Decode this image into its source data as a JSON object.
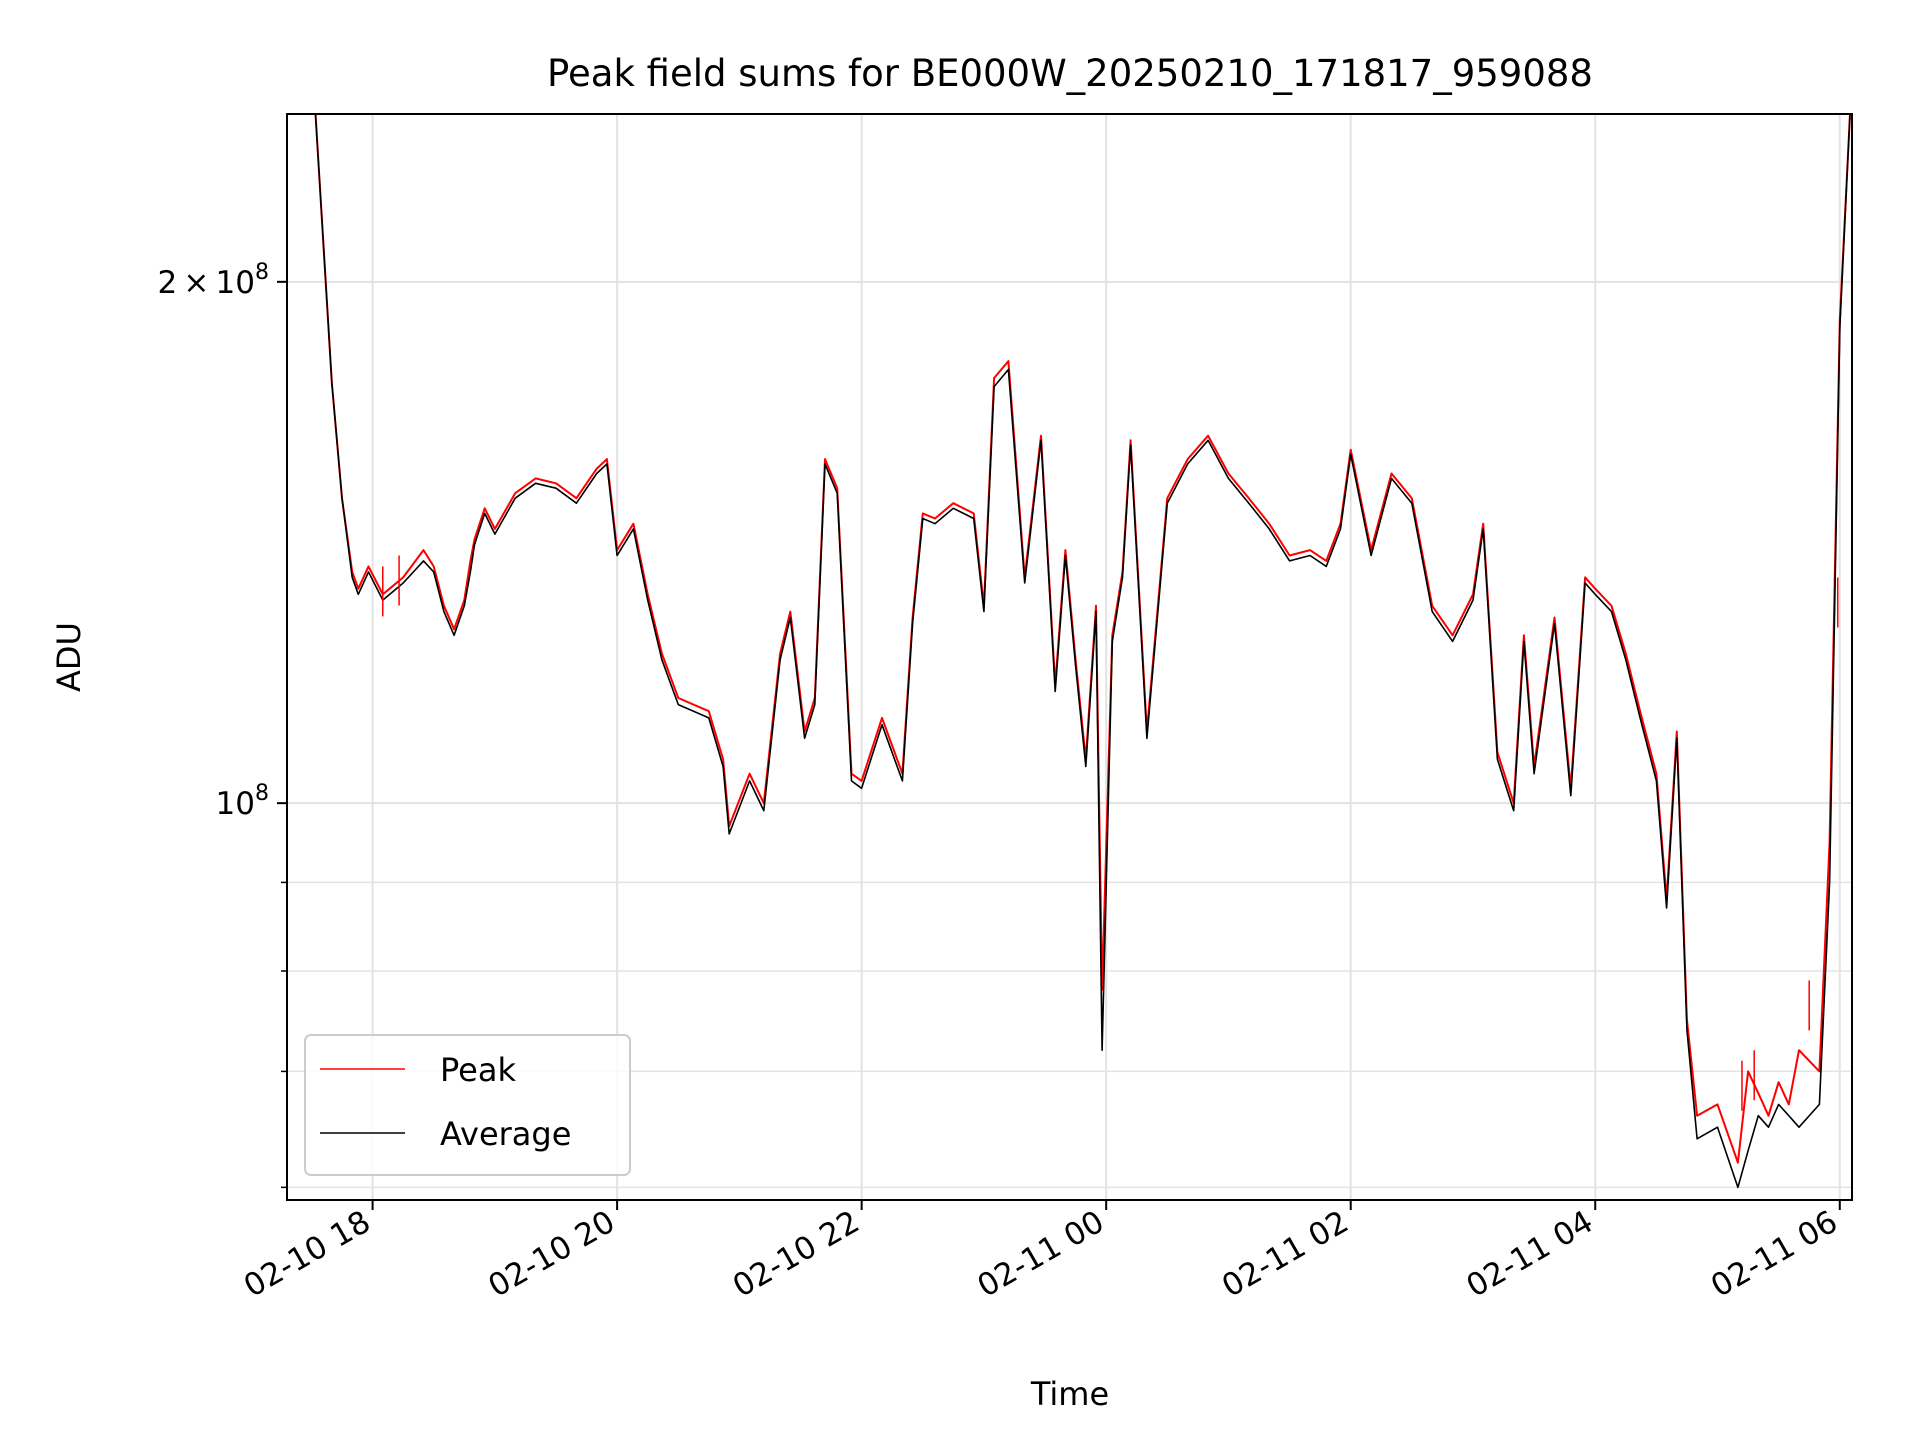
{
  "chart_data": {
    "type": "line",
    "title": "Peak field sums for BE000W_20250210_171817_959088",
    "xlabel": "Time",
    "ylabel": "ADU",
    "yscale": "log",
    "grid": true,
    "legend_position": "lower-left",
    "x_tick_labels": [
      "02-10 18",
      "02-10 20",
      "02-10 22",
      "02-11 00",
      "02-11 02",
      "02-11 04",
      "02-11 06"
    ],
    "y_tick_labels": [
      {
        "value": 200000000,
        "mantissa": "2",
        "times": "×",
        "base": "10",
        "exponent": "8"
      },
      {
        "value": 100000000,
        "mantissa": "",
        "times": "",
        "base": "10",
        "exponent": "8"
      }
    ],
    "xlim": [
      "2025-02-10 17:18",
      "2025-02-11 06:06"
    ],
    "ylim": [
      59000000,
      250000000
    ],
    "series": [
      {
        "name": "Peak",
        "color": "#ff0000",
        "x": [
          "2025-02-10 17:20",
          "2025-02-10 17:32",
          "2025-02-10 17:40",
          "2025-02-10 17:45",
          "2025-02-10 17:50",
          "2025-02-10 17:53",
          "2025-02-10 17:58",
          "2025-02-10 18:05",
          "2025-02-10 18:15",
          "2025-02-10 18:25",
          "2025-02-10 18:30",
          "2025-02-10 18:35",
          "2025-02-10 18:40",
          "2025-02-10 18:45",
          "2025-02-10 18:48",
          "2025-02-10 18:50",
          "2025-02-10 18:55",
          "2025-02-10 19:00",
          "2025-02-10 19:10",
          "2025-02-10 19:20",
          "2025-02-10 19:30",
          "2025-02-10 19:40",
          "2025-02-10 19:50",
          "2025-02-10 19:55",
          "2025-02-10 20:00",
          "2025-02-10 20:08",
          "2025-02-10 20:15",
          "2025-02-10 20:22",
          "2025-02-10 20:30",
          "2025-02-10 20:45",
          "2025-02-10 20:52",
          "2025-02-10 20:55",
          "2025-02-10 21:05",
          "2025-02-10 21:12",
          "2025-02-10 21:20",
          "2025-02-10 21:25",
          "2025-02-10 21:32",
          "2025-02-10 21:37",
          "2025-02-10 21:42",
          "2025-02-10 21:48",
          "2025-02-10 21:55",
          "2025-02-10 22:00",
          "2025-02-10 22:10",
          "2025-02-10 22:20",
          "2025-02-10 22:25",
          "2025-02-10 22:30",
          "2025-02-10 22:36",
          "2025-02-10 22:45",
          "2025-02-10 22:50",
          "2025-02-10 22:55",
          "2025-02-10 23:00",
          "2025-02-10 23:05",
          "2025-02-10 23:12",
          "2025-02-10 23:20",
          "2025-02-10 23:28",
          "2025-02-10 23:35",
          "2025-02-10 23:40",
          "2025-02-10 23:45",
          "2025-02-10 23:50",
          "2025-02-10 23:55",
          "2025-02-10 23:58",
          "2025-02-11 00:03",
          "2025-02-11 00:08",
          "2025-02-11 00:12",
          "2025-02-11 00:20",
          "2025-02-11 00:30",
          "2025-02-11 00:40",
          "2025-02-11 00:50",
          "2025-02-11 01:00",
          "2025-02-11 01:10",
          "2025-02-11 01:20",
          "2025-02-11 01:30",
          "2025-02-11 01:40",
          "2025-02-11 01:48",
          "2025-02-11 01:55",
          "2025-02-11 02:00",
          "2025-02-11 02:10",
          "2025-02-11 02:20",
          "2025-02-11 02:30",
          "2025-02-11 02:40",
          "2025-02-11 02:50",
          "2025-02-11 03:00",
          "2025-02-11 03:05",
          "2025-02-11 03:12",
          "2025-02-11 03:20",
          "2025-02-11 03:25",
          "2025-02-11 03:30",
          "2025-02-11 03:40",
          "2025-02-11 03:48",
          "2025-02-11 03:55",
          "2025-02-11 04:00",
          "2025-02-11 04:08",
          "2025-02-11 04:15",
          "2025-02-11 04:22",
          "2025-02-11 04:30",
          "2025-02-11 04:35",
          "2025-02-11 04:40",
          "2025-02-11 04:45",
          "2025-02-11 04:50",
          "2025-02-11 05:00",
          "2025-02-11 05:10",
          "2025-02-11 05:15",
          "2025-02-11 05:20",
          "2025-02-11 05:25",
          "2025-02-11 05:30",
          "2025-02-11 05:35",
          "2025-02-11 05:40",
          "2025-02-11 05:50",
          "2025-02-11 05:55",
          "2025-02-11 06:00",
          "2025-02-11 06:05"
        ],
        "values": [
          250000000,
          250000000,
          175000000,
          150000000,
          136000000,
          133000000,
          137000000,
          132000000,
          135000000,
          140000000,
          137000000,
          130000000,
          126000000,
          131000000,
          138000000,
          142000000,
          148000000,
          144000000,
          151000000,
          154000000,
          153000000,
          150000000,
          156000000,
          158000000,
          140000000,
          145000000,
          132000000,
          122000000,
          115000000,
          113000000,
          106000000,
          97000000,
          104000000,
          100000000,
          122000000,
          129000000,
          110000000,
          115000000,
          158000000,
          152000000,
          104000000,
          103000000,
          112000000,
          104000000,
          128000000,
          147000000,
          146000000,
          149000000,
          148000000,
          147000000,
          130000000,
          176000000,
          180000000,
          135000000,
          163000000,
          117000000,
          140000000,
          121000000,
          106000000,
          130000000,
          78000000,
          125000000,
          136000000,
          162000000,
          110000000,
          150000000,
          158000000,
          163000000,
          155000000,
          150000000,
          145000000,
          139000000,
          140000000,
          138000000,
          145000000,
          160000000,
          140000000,
          155000000,
          150000000,
          130000000,
          125000000,
          132000000,
          145000000,
          107000000,
          100000000,
          125000000,
          105000000,
          128000000,
          102000000,
          135000000,
          133000000,
          130000000,
          122000000,
          113000000,
          104000000,
          88000000,
          110000000,
          75000000,
          66000000,
          67000000,
          62000000,
          70000000,
          68000000,
          66000000,
          69000000,
          67000000,
          72000000,
          70000000,
          95000000,
          190000000,
          250000000
        ]
      },
      {
        "name": "Average",
        "color": "#000000",
        "x": [
          "2025-02-10 17:20",
          "2025-02-10 17:32",
          "2025-02-10 17:40",
          "2025-02-10 17:45",
          "2025-02-10 17:50",
          "2025-02-10 17:53",
          "2025-02-10 17:58",
          "2025-02-10 18:05",
          "2025-02-10 18:15",
          "2025-02-10 18:25",
          "2025-02-10 18:30",
          "2025-02-10 18:35",
          "2025-02-10 18:40",
          "2025-02-10 18:45",
          "2025-02-10 18:48",
          "2025-02-10 18:50",
          "2025-02-10 18:55",
          "2025-02-10 19:00",
          "2025-02-10 19:10",
          "2025-02-10 19:20",
          "2025-02-10 19:30",
          "2025-02-10 19:40",
          "2025-02-10 19:50",
          "2025-02-10 19:55",
          "2025-02-10 20:00",
          "2025-02-10 20:08",
          "2025-02-10 20:15",
          "2025-02-10 20:22",
          "2025-02-10 20:30",
          "2025-02-10 20:45",
          "2025-02-10 20:52",
          "2025-02-10 20:55",
          "2025-02-10 21:05",
          "2025-02-10 21:12",
          "2025-02-10 21:20",
          "2025-02-10 21:25",
          "2025-02-10 21:32",
          "2025-02-10 21:37",
          "2025-02-10 21:42",
          "2025-02-10 21:48",
          "2025-02-10 21:55",
          "2025-02-10 22:00",
          "2025-02-10 22:10",
          "2025-02-10 22:20",
          "2025-02-10 22:25",
          "2025-02-10 22:30",
          "2025-02-10 22:36",
          "2025-02-10 22:45",
          "2025-02-10 22:50",
          "2025-02-10 22:55",
          "2025-02-10 23:00",
          "2025-02-10 23:05",
          "2025-02-10 23:12",
          "2025-02-10 23:20",
          "2025-02-10 23:28",
          "2025-02-10 23:35",
          "2025-02-10 23:40",
          "2025-02-10 23:45",
          "2025-02-10 23:50",
          "2025-02-10 23:55",
          "2025-02-10 23:58",
          "2025-02-11 00:03",
          "2025-02-11 00:08",
          "2025-02-11 00:12",
          "2025-02-11 00:20",
          "2025-02-11 00:30",
          "2025-02-11 00:40",
          "2025-02-11 00:50",
          "2025-02-11 01:00",
          "2025-02-11 01:10",
          "2025-02-11 01:20",
          "2025-02-11 01:30",
          "2025-02-11 01:40",
          "2025-02-11 01:48",
          "2025-02-11 01:55",
          "2025-02-11 02:00",
          "2025-02-11 02:10",
          "2025-02-11 02:20",
          "2025-02-11 02:30",
          "2025-02-11 02:40",
          "2025-02-11 02:50",
          "2025-02-11 03:00",
          "2025-02-11 03:05",
          "2025-02-11 03:12",
          "2025-02-11 03:20",
          "2025-02-11 03:25",
          "2025-02-11 03:30",
          "2025-02-11 03:40",
          "2025-02-11 03:48",
          "2025-02-11 03:55",
          "2025-02-11 04:00",
          "2025-02-11 04:08",
          "2025-02-11 04:15",
          "2025-02-11 04:22",
          "2025-02-11 04:30",
          "2025-02-11 04:35",
          "2025-02-11 04:40",
          "2025-02-11 04:45",
          "2025-02-11 04:50",
          "2025-02-11 05:00",
          "2025-02-11 05:10",
          "2025-02-11 05:15",
          "2025-02-11 05:20",
          "2025-02-11 05:25",
          "2025-02-11 05:30",
          "2025-02-11 05:35",
          "2025-02-11 05:40",
          "2025-02-11 05:50",
          "2025-02-11 05:55",
          "2025-02-11 06:00",
          "2025-02-11 06:05"
        ],
        "values": [
          250000000,
          250000000,
          175000000,
          150000000,
          135000000,
          132000000,
          136000000,
          131000000,
          134000000,
          138000000,
          136000000,
          129000000,
          125000000,
          130000000,
          136000000,
          141000000,
          147000000,
          143000000,
          150000000,
          153000000,
          152000000,
          149000000,
          155000000,
          157000000,
          139000000,
          144000000,
          131000000,
          121000000,
          114000000,
          112000000,
          105000000,
          96000000,
          103000000,
          99000000,
          121000000,
          128000000,
          109000000,
          114000000,
          157000000,
          151000000,
          103000000,
          102000000,
          111000000,
          103000000,
          127000000,
          146000000,
          145000000,
          148000000,
          147000000,
          146000000,
          129000000,
          174000000,
          178000000,
          134000000,
          162000000,
          116000000,
          139000000,
          120000000,
          105000000,
          129000000,
          72000000,
          124000000,
          135000000,
          161000000,
          109000000,
          149000000,
          157000000,
          162000000,
          154000000,
          149000000,
          144000000,
          138000000,
          139000000,
          137000000,
          144000000,
          159000000,
          139000000,
          154000000,
          149000000,
          129000000,
          124000000,
          131000000,
          144000000,
          106000000,
          99000000,
          124000000,
          104000000,
          127000000,
          101000000,
          134000000,
          132000000,
          129000000,
          121000000,
          112000000,
          103000000,
          87000000,
          109000000,
          74000000,
          64000000,
          65000000,
          60000000,
          63000000,
          66000000,
          65000000,
          67000000,
          66000000,
          65000000,
          67000000,
          90000000,
          188000000,
          250000000
        ]
      }
    ],
    "spikes": [
      {
        "series": "Peak",
        "x": "2025-02-10 18:05",
        "value": 137000000
      },
      {
        "series": "Peak",
        "x": "2025-02-10 18:13",
        "value": 139000000
      },
      {
        "series": "Peak",
        "x": "2025-02-11 05:12",
        "value": 71000000
      },
      {
        "series": "Peak",
        "x": "2025-02-11 05:18",
        "value": 72000000
      },
      {
        "series": "Peak",
        "x": "2025-02-11 05:45",
        "value": 79000000
      },
      {
        "series": "Peak",
        "x": "2025-02-11 05:59",
        "value": 135000000
      }
    ]
  }
}
